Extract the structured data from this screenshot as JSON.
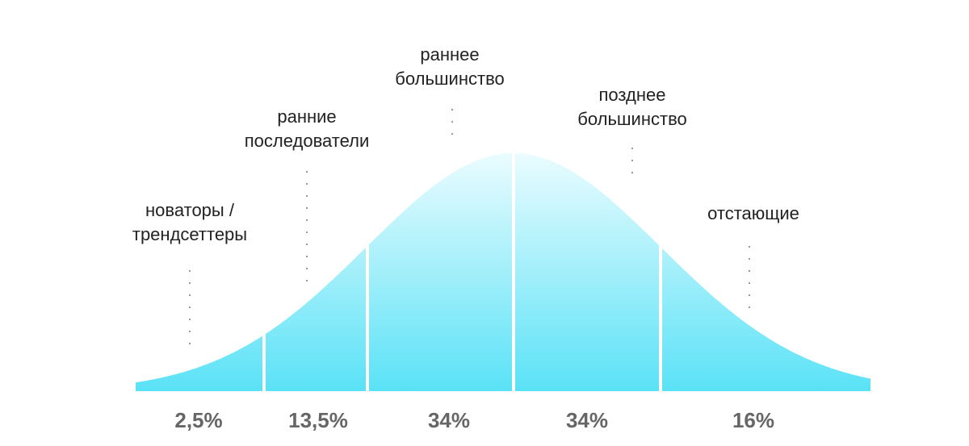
{
  "segments": [
    {
      "label": [
        "новаторы /",
        "трендсеттеры"
      ],
      "share": "2,5%"
    },
    {
      "label": [
        "ранние",
        "последователи"
      ],
      "share": "13,5%"
    },
    {
      "label": [
        "раннее",
        "большинство"
      ],
      "share": "34%"
    },
    {
      "label": [
        "позднее",
        "большинство"
      ],
      "share": "34%"
    },
    {
      "label": [
        "отстающие"
      ],
      "share": "16%"
    }
  ]
}
